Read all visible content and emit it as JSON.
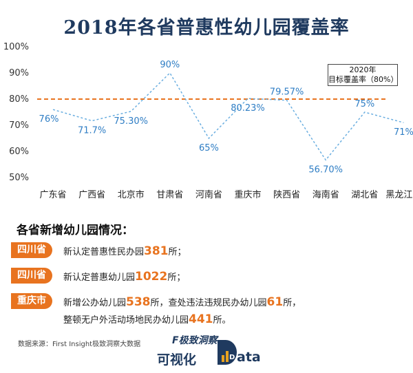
{
  "chart_data": {
    "type": "line",
    "title": "2018年各省普惠性幼儿园覆盖率",
    "categories": [
      "广东省",
      "广西省",
      "北京市",
      "甘肃省",
      "河南省",
      "重庆市",
      "陕西省",
      "海南省",
      "湖北省",
      "黑龙江省"
    ],
    "values": [
      76,
      71.7,
      75.3,
      90,
      65,
      80.23,
      79.57,
      56.7,
      75,
      71
    ],
    "value_labels": [
      "76%",
      "71.7%",
      "75.30%",
      "90%",
      "65%",
      "80.23%",
      "79.57%",
      "56.70%",
      "75%",
      "71%"
    ],
    "ylim": [
      50,
      100
    ],
    "yticks": [
      "50%",
      "60%",
      "70%",
      "80%",
      "90%",
      "100%"
    ],
    "line_style": "dotted",
    "target": {
      "value": 80,
      "label_line1": "2020年",
      "label_line2": "目标覆盖率（80%）"
    },
    "colors": {
      "series": "#6aaee0",
      "labels": "#2e7dc4",
      "target": "#e8731f",
      "title": "#1f3a5f"
    }
  },
  "section": {
    "title": "各省新增幼儿园情况：",
    "entries": [
      {
        "tag": "四川省",
        "pre": "新认定普惠性民办园",
        "num": "381",
        "post": "所；"
      },
      {
        "tag": "四川省",
        "pre": "新认定普惠幼儿园",
        "num": "1022",
        "post": "所；"
      },
      {
        "tag": "重庆市",
        "pre": "新增公办幼儿园",
        "num": "538",
        "mid": "所，查处违法违规民办幼儿园",
        "num2": "61",
        "post": "所，",
        "pre2": "整顿无户外活动场地民办幼儿园",
        "num3": "441",
        "post2": "所。"
      }
    ]
  },
  "source": "数据来源：First Insight极致洞察大数据",
  "logo": {
    "top": "F极致洞察",
    "bottom": "可视化",
    "d": "D",
    "rest": "ata"
  }
}
